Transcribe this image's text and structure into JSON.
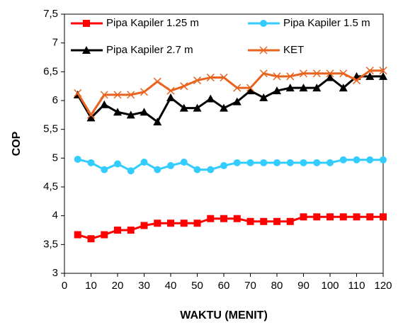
{
  "chart_data": {
    "type": "line",
    "x_label": "WAKTU (MENIT)",
    "y_label": "COP",
    "x": [
      5,
      10,
      15,
      20,
      25,
      30,
      35,
      40,
      45,
      50,
      55,
      60,
      65,
      70,
      75,
      80,
      85,
      90,
      95,
      100,
      105,
      110,
      115,
      120
    ],
    "series": [
      {
        "name": "Pipa Kapiler 1.25 m",
        "color": "#ff0000",
        "marker": "square",
        "values": [
          3.67,
          3.6,
          3.67,
          3.75,
          3.75,
          3.83,
          3.87,
          3.87,
          3.87,
          3.87,
          3.95,
          3.95,
          3.95,
          3.9,
          3.9,
          3.9,
          3.9,
          3.98,
          3.98,
          3.98,
          3.98,
          3.98,
          3.98,
          3.98
        ]
      },
      {
        "name": "Pipa Kapiler 1.5 m",
        "color": "#33ccff",
        "marker": "circle",
        "values": [
          4.98,
          4.92,
          4.8,
          4.9,
          4.78,
          4.93,
          4.8,
          4.87,
          4.93,
          4.8,
          4.8,
          4.87,
          4.92,
          4.92,
          4.92,
          4.92,
          4.92,
          4.92,
          4.92,
          4.92,
          4.97,
          4.97,
          4.97,
          4.97
        ]
      },
      {
        "name": "Pipa Kapiler 2.7 m",
        "color": "#000000",
        "marker": "triangle",
        "values": [
          6.1,
          5.7,
          5.93,
          5.8,
          5.75,
          5.8,
          5.63,
          6.05,
          5.87,
          5.87,
          6.03,
          5.87,
          5.98,
          6.17,
          6.05,
          6.17,
          6.22,
          6.22,
          6.22,
          6.4,
          6.22,
          6.42,
          6.42,
          6.42
        ]
      },
      {
        "name": "KET",
        "color": "#e8641e",
        "marker": "x",
        "values": [
          6.13,
          5.75,
          6.1,
          6.1,
          6.1,
          6.15,
          6.33,
          6.17,
          6.25,
          6.35,
          6.4,
          6.4,
          6.22,
          6.22,
          6.47,
          6.42,
          6.42,
          6.47,
          6.47,
          6.47,
          6.47,
          6.35,
          6.52,
          6.52
        ]
      }
    ],
    "xlim": [
      0,
      120
    ],
    "xticks": [
      0,
      10,
      20,
      30,
      40,
      50,
      60,
      70,
      80,
      90,
      100,
      110,
      120
    ],
    "ylim": [
      3,
      7.5
    ],
    "yticks": [
      3,
      {
        "value": 3.5,
        "label": "3,5"
      },
      4,
      {
        "value": 4.5,
        "label": "4,5"
      },
      5,
      {
        "value": 5.5,
        "label": "5,5"
      },
      6,
      {
        "value": 6.5,
        "label": "6,5"
      },
      7,
      {
        "value": 7.5,
        "label": "7,5"
      }
    ]
  }
}
